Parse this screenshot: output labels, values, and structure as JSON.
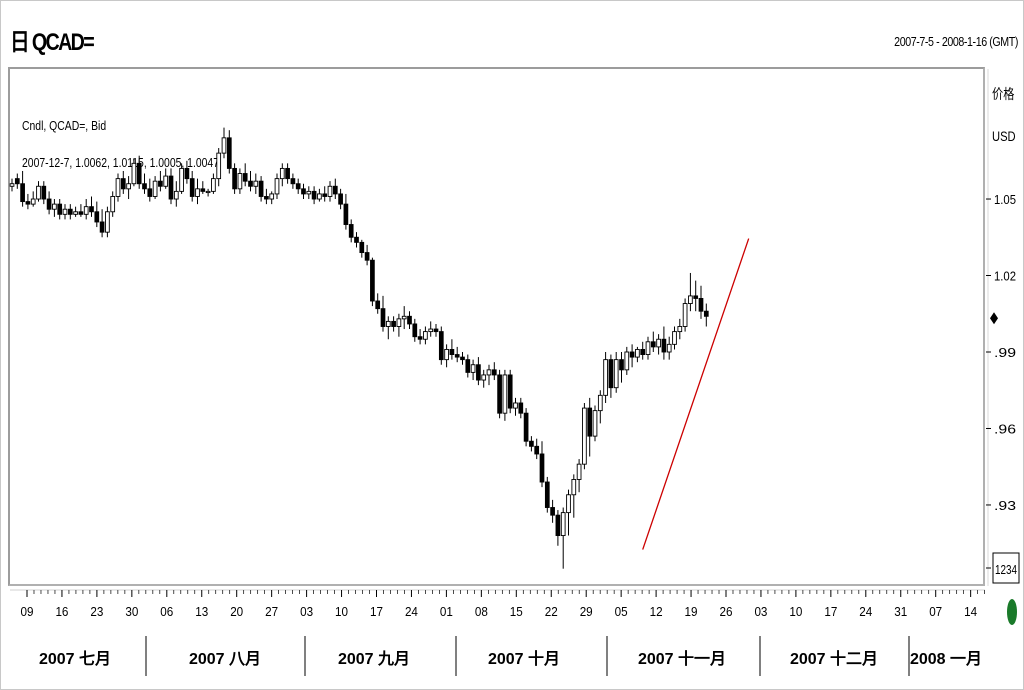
{
  "header": {
    "title": "日 QCAD=",
    "date_range": "2007-7-5 - 2008-1-16 (GMT)"
  },
  "axis_right": {
    "label": "价格",
    "unit": "USD",
    "current_box": "1234"
  },
  "info": {
    "line1": "Cndl, QCAD=, Bid",
    "line2": "2007-12-7, 1.0062, 1.0115, 1.0005, 1.0047"
  },
  "colors": {
    "candle": "#000000",
    "trendline": "#cc0000",
    "status_dot": "#1a7a2a"
  },
  "chart_data": {
    "type": "candlestick",
    "title": "日 QCAD=",
    "ylabel": "USD",
    "ylim": [
      0.899,
      1.101
    ],
    "yticks": [
      1.05,
      1.02,
      0.99,
      0.96,
      0.93
    ],
    "ytick_labels": [
      "1.05",
      "1.02",
      ".99",
      ".96",
      ".93"
    ],
    "xtick_labels": [
      "09",
      "16",
      "23",
      "30",
      "06",
      "13",
      "20",
      "27",
      "03",
      "10",
      "17",
      "24",
      "01",
      "08",
      "15",
      "22",
      "29",
      "05",
      "12",
      "19",
      "26",
      "03",
      "10",
      "17",
      "24",
      "31",
      "07",
      "14"
    ],
    "months": [
      "2007 七月",
      "2007 八月",
      "2007 九月",
      "2007 十月",
      "2007 十一月",
      "2007 十二月",
      "2008 一月"
    ],
    "ohlc": [
      [
        1.055,
        1.058,
        1.053,
        1.056
      ],
      [
        1.058,
        1.06,
        1.054,
        1.056
      ],
      [
        1.056,
        1.061,
        1.047,
        1.049
      ],
      [
        1.049,
        1.052,
        1.046,
        1.048
      ],
      [
        1.048,
        1.053,
        1.047,
        1.05
      ],
      [
        1.05,
        1.057,
        1.049,
        1.055
      ],
      [
        1.055,
        1.057,
        1.048,
        1.05
      ],
      [
        1.05,
        1.053,
        1.044,
        1.046
      ],
      [
        1.046,
        1.05,
        1.043,
        1.048
      ],
      [
        1.048,
        1.05,
        1.042,
        1.044
      ],
      [
        1.044,
        1.048,
        1.042,
        1.046
      ],
      [
        1.046,
        1.048,
        1.042,
        1.044
      ],
      [
        1.044,
        1.047,
        1.043,
        1.045
      ],
      [
        1.045,
        1.048,
        1.043,
        1.044
      ],
      [
        1.044,
        1.05,
        1.042,
        1.047
      ],
      [
        1.047,
        1.051,
        1.043,
        1.045
      ],
      [
        1.045,
        1.049,
        1.039,
        1.041
      ],
      [
        1.041,
        1.046,
        1.035,
        1.037
      ],
      [
        1.037,
        1.047,
        1.035,
        1.045
      ],
      [
        1.045,
        1.053,
        1.043,
        1.051
      ],
      [
        1.051,
        1.06,
        1.049,
        1.058
      ],
      [
        1.058,
        1.061,
        1.052,
        1.054
      ],
      [
        1.054,
        1.059,
        1.05,
        1.056
      ],
      [
        1.056,
        1.066,
        1.055,
        1.064
      ],
      [
        1.064,
        1.067,
        1.054,
        1.056
      ],
      [
        1.056,
        1.06,
        1.052,
        1.054
      ],
      [
        1.054,
        1.058,
        1.049,
        1.051
      ],
      [
        1.051,
        1.059,
        1.05,
        1.057
      ],
      [
        1.057,
        1.061,
        1.053,
        1.055
      ],
      [
        1.055,
        1.062,
        1.054,
        1.059
      ],
      [
        1.059,
        1.062,
        1.048,
        1.05
      ],
      [
        1.05,
        1.057,
        1.047,
        1.053
      ],
      [
        1.053,
        1.064,
        1.052,
        1.062
      ],
      [
        1.062,
        1.065,
        1.056,
        1.058
      ],
      [
        1.058,
        1.061,
        1.049,
        1.051
      ],
      [
        1.051,
        1.058,
        1.048,
        1.054
      ],
      [
        1.054,
        1.057,
        1.052,
        1.053
      ],
      [
        1.053,
        1.054,
        1.051,
        1.053
      ],
      [
        1.053,
        1.06,
        1.052,
        1.058
      ],
      [
        1.058,
        1.07,
        1.055,
        1.068
      ],
      [
        1.068,
        1.078,
        1.066,
        1.074
      ],
      [
        1.074,
        1.077,
        1.06,
        1.062
      ],
      [
        1.062,
        1.064,
        1.052,
        1.054
      ],
      [
        1.054,
        1.062,
        1.052,
        1.06
      ],
      [
        1.06,
        1.064,
        1.055,
        1.057
      ],
      [
        1.057,
        1.061,
        1.053,
        1.055
      ],
      [
        1.055,
        1.06,
        1.052,
        1.057
      ],
      [
        1.057,
        1.059,
        1.049,
        1.051
      ],
      [
        1.051,
        1.054,
        1.048,
        1.05
      ],
      [
        1.05,
        1.053,
        1.048,
        1.052
      ],
      [
        1.052,
        1.06,
        1.05,
        1.058
      ],
      [
        1.058,
        1.064,
        1.055,
        1.062
      ],
      [
        1.062,
        1.064,
        1.056,
        1.058
      ],
      [
        1.058,
        1.06,
        1.054,
        1.056
      ],
      [
        1.056,
        1.058,
        1.052,
        1.054
      ],
      [
        1.054,
        1.056,
        1.05,
        1.052
      ],
      [
        1.052,
        1.055,
        1.05,
        1.053
      ],
      [
        1.053,
        1.055,
        1.048,
        1.05
      ],
      [
        1.05,
        1.054,
        1.049,
        1.052
      ],
      [
        1.052,
        1.055,
        1.049,
        1.051
      ],
      [
        1.051,
        1.057,
        1.049,
        1.055
      ],
      [
        1.055,
        1.058,
        1.05,
        1.052
      ],
      [
        1.052,
        1.054,
        1.046,
        1.048
      ],
      [
        1.048,
        1.052,
        1.038,
        1.04
      ],
      [
        1.04,
        1.042,
        1.033,
        1.035
      ],
      [
        1.035,
        1.037,
        1.031,
        1.033
      ],
      [
        1.033,
        1.034,
        1.027,
        1.029
      ],
      [
        1.029,
        1.032,
        1.024,
        1.026
      ],
      [
        1.026,
        1.027,
        1.008,
        1.01
      ],
      [
        1.01,
        1.013,
        1.005,
        1.007
      ],
      [
        1.007,
        1.012,
        0.998,
        1.0
      ],
      [
        1.0,
        1.004,
        0.995,
        1.002
      ],
      [
        1.002,
        1.004,
        0.998,
        1.0
      ],
      [
        1.0,
        1.005,
        0.996,
        1.003
      ],
      [
        1.003,
        1.008,
        0.999,
        1.004
      ],
      [
        1.004,
        1.006,
        0.999,
        1.001
      ],
      [
        1.001,
        1.003,
        0.994,
        0.996
      ],
      [
        0.996,
        0.999,
        0.993,
        0.995
      ],
      [
        0.995,
        1.0,
        0.993,
        0.998
      ],
      [
        0.998,
        1.002,
        0.996,
        0.999
      ],
      [
        0.999,
        1.001,
        0.996,
        0.998
      ],
      [
        0.998,
        1.0,
        0.985,
        0.987
      ],
      [
        0.987,
        0.993,
        0.984,
        0.991
      ],
      [
        0.991,
        0.995,
        0.987,
        0.989
      ],
      [
        0.989,
        0.992,
        0.986,
        0.988
      ],
      [
        0.988,
        0.99,
        0.985,
        0.987
      ],
      [
        0.987,
        0.989,
        0.98,
        0.982
      ],
      [
        0.982,
        0.987,
        0.979,
        0.985
      ],
      [
        0.985,
        0.988,
        0.977,
        0.979
      ],
      [
        0.979,
        0.983,
        0.976,
        0.981
      ],
      [
        0.981,
        0.985,
        0.977,
        0.983
      ],
      [
        0.983,
        0.986,
        0.979,
        0.981
      ],
      [
        0.981,
        0.983,
        0.964,
        0.966
      ],
      [
        0.966,
        0.983,
        0.963,
        0.981
      ],
      [
        0.981,
        0.983,
        0.966,
        0.968
      ],
      [
        0.968,
        0.972,
        0.965,
        0.97
      ],
      [
        0.97,
        0.972,
        0.964,
        0.966
      ],
      [
        0.966,
        0.968,
        0.953,
        0.955
      ],
      [
        0.955,
        0.957,
        0.951,
        0.953
      ],
      [
        0.953,
        0.956,
        0.948,
        0.95
      ],
      [
        0.95,
        0.955,
        0.937,
        0.939
      ],
      [
        0.939,
        0.941,
        0.927,
        0.929
      ],
      [
        0.929,
        0.932,
        0.923,
        0.926
      ],
      [
        0.926,
        0.928,
        0.914,
        0.918
      ],
      [
        0.918,
        0.929,
        0.905,
        0.927
      ],
      [
        0.927,
        0.936,
        0.918,
        0.934
      ],
      [
        0.934,
        0.942,
        0.925,
        0.94
      ],
      [
        0.94,
        0.948,
        0.935,
        0.946
      ],
      [
        0.946,
        0.97,
        0.944,
        0.968
      ],
      [
        0.968,
        0.972,
        0.949,
        0.957
      ],
      [
        0.957,
        0.969,
        0.955,
        0.967
      ],
      [
        0.967,
        0.975,
        0.962,
        0.973
      ],
      [
        0.973,
        0.99,
        0.97,
        0.987
      ],
      [
        0.987,
        0.989,
        0.972,
        0.976
      ],
      [
        0.976,
        0.99,
        0.974,
        0.987
      ],
      [
        0.987,
        0.99,
        0.978,
        0.983
      ],
      [
        0.983,
        0.992,
        0.981,
        0.99
      ],
      [
        0.99,
        0.993,
        0.984,
        0.988
      ],
      [
        0.988,
        0.992,
        0.986,
        0.991
      ],
      [
        0.991,
        0.994,
        0.987,
        0.989
      ],
      [
        0.989,
        0.996,
        0.987,
        0.994
      ],
      [
        0.994,
        0.998,
        0.99,
        0.992
      ],
      [
        0.992,
        0.997,
        0.989,
        0.995
      ],
      [
        0.995,
        1.0,
        0.987,
        0.99
      ],
      [
        0.99,
        0.996,
        0.987,
        0.993
      ],
      [
        0.993,
        1.0,
        0.991,
        0.998
      ],
      [
        0.998,
        1.003,
        0.995,
        1.0
      ],
      [
        1.0,
        1.011,
        0.998,
        1.009
      ],
      [
        1.009,
        1.021,
        1.006,
        1.012
      ],
      [
        1.012,
        1.018,
        1.006,
        1.011
      ],
      [
        1.011,
        1.016,
        1.003,
        1.006
      ],
      [
        1.006,
        1.009,
        1.0,
        1.004
      ]
    ],
    "trendline": {
      "x": [
        119,
        139
      ],
      "y": [
        0.9125,
        1.0345
      ]
    }
  }
}
